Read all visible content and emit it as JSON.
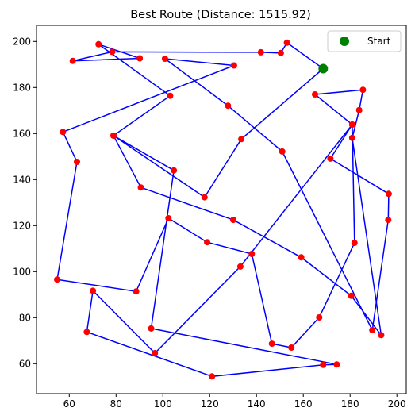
{
  "chart_data": {
    "type": "scatter",
    "title": "Best Route (Distance: 1515.92)",
    "xlabel": "",
    "ylabel": "",
    "xlim": [
      46,
      204
    ],
    "ylim": [
      47,
      207
    ],
    "xticks": [
      60,
      80,
      100,
      120,
      140,
      160,
      180,
      200
    ],
    "yticks": [
      60,
      80,
      100,
      120,
      140,
      160,
      180,
      200
    ],
    "grid": false,
    "legend": {
      "placement": "top-right",
      "entries": [
        "Start"
      ]
    },
    "colors": {
      "route": "#0000ff",
      "cities": "#ff0000",
      "start": "#008000"
    },
    "start": {
      "x": 168.5,
      "y": 188.2
    },
    "route": [
      [
        168.5,
        188.2
      ],
      [
        133.5,
        157.6
      ],
      [
        117.8,
        132.3
      ],
      [
        78.9,
        159.1
      ],
      [
        90.6,
        136.6
      ],
      [
        130.1,
        122.5
      ],
      [
        159.1,
        106.2
      ],
      [
        180.5,
        89.5
      ],
      [
        193.3,
        72.4
      ],
      [
        180.9,
        158.1
      ],
      [
        183.9,
        170.2
      ],
      [
        185.5,
        179.0
      ],
      [
        165.0,
        177.0
      ],
      [
        180.9,
        163.9
      ],
      [
        181.9,
        112.5
      ],
      [
        166.8,
        80.1
      ],
      [
        154.9,
        67.0
      ],
      [
        146.6,
        68.7
      ],
      [
        138.0,
        107.7
      ],
      [
        118.9,
        112.8
      ],
      [
        102.4,
        123.2
      ],
      [
        88.6,
        91.4
      ],
      [
        54.8,
        96.6
      ],
      [
        63.3,
        147.7
      ],
      [
        57.3,
        160.7
      ],
      [
        130.4,
        189.6
      ],
      [
        100.9,
        192.5
      ],
      [
        127.8,
        172.1
      ],
      [
        151.0,
        152.2
      ],
      [
        189.5,
        74.6
      ],
      [
        196.3,
        122.5
      ],
      [
        196.5,
        133.8
      ],
      [
        171.6,
        149.1
      ],
      [
        180.9,
        163.9
      ],
      [
        133.1,
        102.2
      ],
      [
        96.6,
        64.6
      ],
      [
        70.1,
        91.7
      ],
      [
        67.5,
        73.8
      ],
      [
        121.0,
        54.5
      ],
      [
        168.5,
        59.5
      ],
      [
        174.3,
        59.7
      ],
      [
        95.0,
        75.3
      ],
      [
        104.7,
        144.0
      ],
      [
        78.9,
        159.1
      ],
      [
        103.1,
        176.4
      ],
      [
        72.5,
        198.8
      ],
      [
        90.1,
        192.7
      ],
      [
        61.5,
        191.6
      ],
      [
        78.3,
        195.5
      ],
      [
        141.9,
        195.3
      ],
      [
        150.4,
        195.0
      ],
      [
        153.0,
        199.5
      ],
      [
        168.5,
        188.2
      ]
    ]
  }
}
